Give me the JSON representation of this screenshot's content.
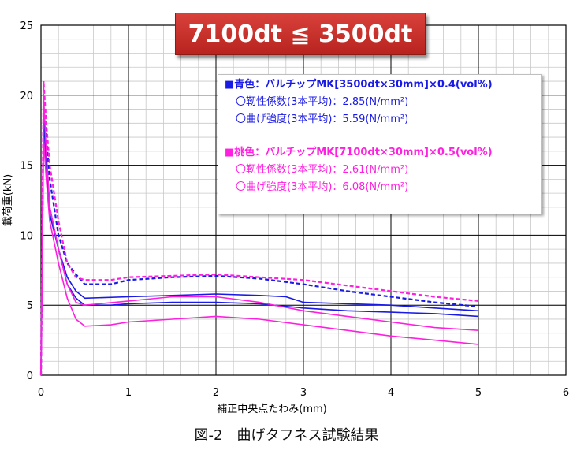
{
  "chart_data": {
    "type": "line",
    "title": "7100dt ≦ 3500dt",
    "xlabel": "補正中央点たわみ(mm)",
    "ylabel": "載荷重(kN)",
    "xlim": [
      0,
      6
    ],
    "ylim": [
      0,
      25
    ],
    "x_ticks": [
      "0",
      "1",
      "2",
      "3",
      "4",
      "5",
      "6"
    ],
    "y_ticks": [
      "0",
      "5",
      "10",
      "15",
      "20",
      "25"
    ],
    "grid": true,
    "legend_placement": "top-right",
    "series": [
      {
        "group": "blue",
        "color": "#1a1ae6",
        "dashed": true,
        "x": [
          0,
          0.03,
          0.06,
          0.1,
          0.2,
          0.3,
          0.4,
          0.5,
          0.8,
          1.0,
          1.5,
          2.0,
          2.5,
          3.0,
          3.5,
          4.0,
          4.5,
          5.0
        ],
        "y": [
          0,
          19,
          17,
          14,
          10,
          8,
          7.2,
          6.5,
          6.5,
          6.8,
          7.0,
          7.1,
          6.9,
          6.5,
          6.0,
          5.6,
          5.2,
          4.9
        ]
      },
      {
        "group": "blue",
        "color": "#1a1ae6",
        "dashed": false,
        "x": [
          0,
          0.03,
          0.06,
          0.1,
          0.2,
          0.3,
          0.4,
          0.5,
          0.8,
          1.0,
          1.5,
          2.0,
          2.5,
          3.0,
          3.5,
          4.0,
          4.5,
          5.0
        ],
        "y": [
          0,
          18.5,
          16,
          12,
          9,
          6.5,
          5.5,
          5.0,
          5.0,
          5.1,
          5.2,
          5.2,
          5.1,
          4.8,
          4.6,
          4.5,
          4.4,
          4.2
        ]
      },
      {
        "group": "blue",
        "color": "#1a1ae6",
        "dashed": false,
        "x": [
          0,
          0.03,
          0.06,
          0.1,
          0.2,
          0.3,
          0.4,
          0.5,
          1.0,
          1.5,
          2.0,
          2.5,
          2.8,
          3.0,
          4.0,
          4.5,
          5.0
        ],
        "y": [
          0,
          18,
          15,
          11.5,
          9,
          7,
          6,
          5.5,
          5.6,
          5.7,
          5.8,
          5.7,
          5.6,
          5.2,
          5.0,
          4.8,
          4.6
        ]
      },
      {
        "group": "pink",
        "color": "#ff1fe0",
        "dashed": true,
        "x": [
          0,
          0.03,
          0.06,
          0.1,
          0.2,
          0.3,
          0.4,
          0.5,
          0.8,
          1.0,
          1.5,
          2.0,
          2.5,
          3.0,
          3.5,
          4.0,
          4.5,
          5.0
        ],
        "y": [
          0,
          21,
          18,
          15,
          11,
          8,
          7,
          6.8,
          6.8,
          7.0,
          7.1,
          7.2,
          7.0,
          6.8,
          6.4,
          6.0,
          5.6,
          5.3
        ]
      },
      {
        "group": "pink",
        "color": "#ff1fe0",
        "dashed": false,
        "x": [
          0,
          0.03,
          0.06,
          0.1,
          0.2,
          0.3,
          0.4,
          0.5,
          1.0,
          1.5,
          2.0,
          2.5,
          3.0,
          3.5,
          4.0,
          4.5,
          5.0
        ],
        "y": [
          0,
          20,
          16,
          12,
          9,
          6.5,
          5.2,
          5.0,
          5.3,
          5.6,
          5.6,
          5.2,
          4.6,
          4.2,
          3.8,
          3.4,
          3.2
        ]
      },
      {
        "group": "pink",
        "color": "#ff1fe0",
        "dashed": false,
        "x": [
          0,
          0.03,
          0.06,
          0.1,
          0.2,
          0.3,
          0.4,
          0.5,
          0.8,
          1.0,
          1.5,
          2.0,
          2.5,
          3.0,
          3.5,
          4.0,
          4.5,
          5.0
        ],
        "y": [
          0,
          17,
          14,
          11,
          8,
          5.5,
          4.0,
          3.5,
          3.6,
          3.8,
          4.0,
          4.2,
          4.0,
          3.6,
          3.2,
          2.8,
          2.5,
          2.2
        ]
      }
    ],
    "legend": [
      {
        "color": "#1a1ae6",
        "lines": [
          "■青色：バルチップMK[3500dt×30mm]×0.4(vol%)",
          "〇靭性係数(3本平均)：2.85(N/mm²)",
          "〇曲げ強度(3本平均)：5.59(N/mm²)"
        ]
      },
      {
        "color": "#ff1fe0",
        "lines": [
          "■桃色：バルチップMK[7100dt×30mm]×0.5(vol%)",
          "〇靭性係数(3本平均)：2.61(N/mm²)",
          "〇曲げ強度(3本平均)：6.08(N/mm²)"
        ]
      }
    ]
  },
  "caption": "図-2　曲げタフネス試験結果",
  "colors": {
    "blue": "#1a1ae6",
    "pink": "#ff1fe0",
    "callout": "#c62d28"
  }
}
